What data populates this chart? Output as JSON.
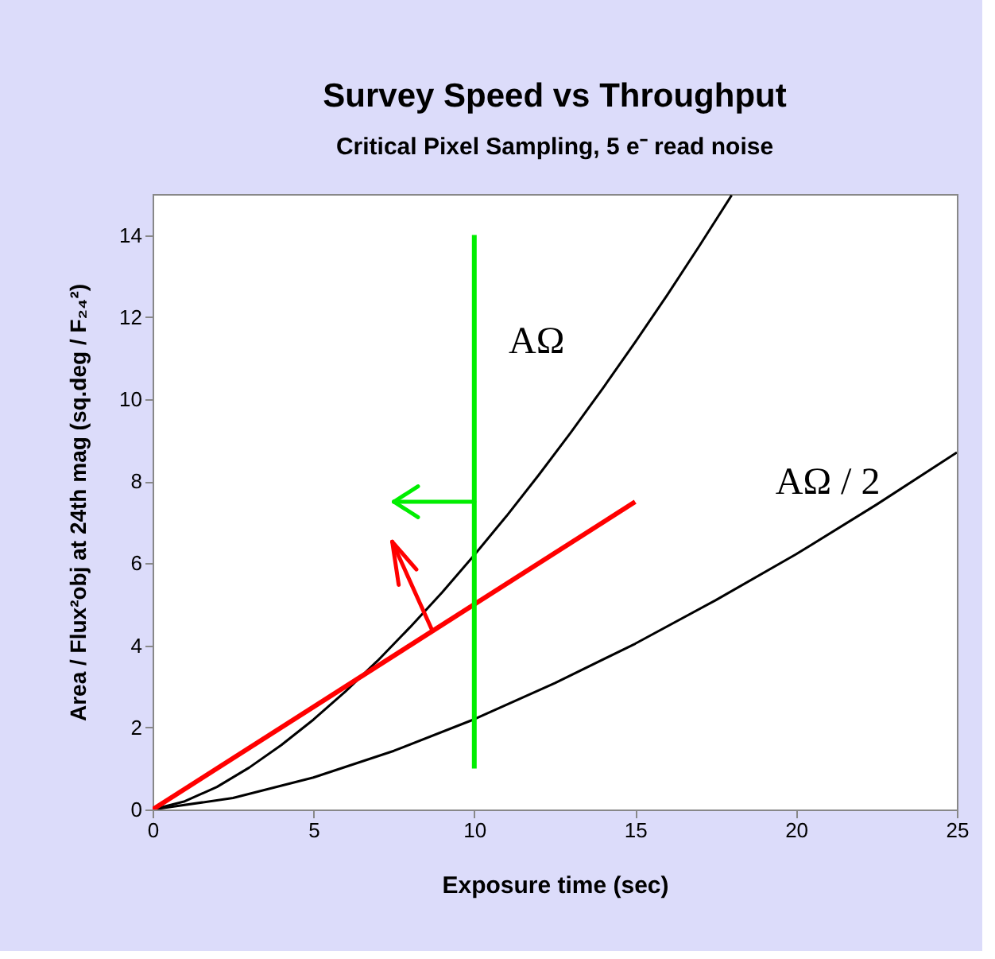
{
  "chart_data": {
    "type": "line",
    "title": "Survey Speed vs Throughput",
    "subtitle": "Critical Pixel Sampling, 5 e⁻ read noise",
    "xlabel": "Exposure time  (sec)",
    "ylabel": "Area / Flux²obj at 24th mag  (sq.deg / F₂₄²)",
    "xlim": [
      0,
      25
    ],
    "ylim": [
      0,
      15
    ],
    "xticks": [
      0,
      5,
      10,
      15,
      20,
      25
    ],
    "yticks": [
      0,
      2,
      4,
      6,
      8,
      10,
      12,
      14
    ],
    "grid": false,
    "marker": "none",
    "line_style": "solid",
    "series": [
      {
        "name": "AΩ",
        "color": "#000000",
        "x": [
          0,
          1,
          2,
          3,
          4,
          5,
          6,
          7,
          8,
          9,
          10,
          11,
          12,
          13,
          14,
          15,
          16,
          17,
          18
        ],
        "values": [
          0,
          0.2,
          0.55,
          1.02,
          1.57,
          2.19,
          2.88,
          3.63,
          4.44,
          5.29,
          6.2,
          7.15,
          8.15,
          9.19,
          10.27,
          11.39,
          12.54,
          13.74,
          14.97
        ]
      },
      {
        "name": "AΩ / 2",
        "color": "#000000",
        "x": [
          0,
          2.5,
          5,
          7.5,
          10,
          12.5,
          15,
          17.5,
          20,
          22.5,
          25
        ],
        "values": [
          0,
          0.28,
          0.78,
          1.43,
          2.2,
          3.08,
          4.04,
          5.1,
          6.22,
          7.43,
          8.7
        ]
      },
      {
        "color": "#ff0000",
        "x": [
          0,
          15
        ],
        "values": [
          0,
          7.5
        ]
      },
      {
        "color": "#00ee00",
        "x": [
          10,
          10
        ],
        "values": [
          1,
          14
        ]
      }
    ]
  }
}
